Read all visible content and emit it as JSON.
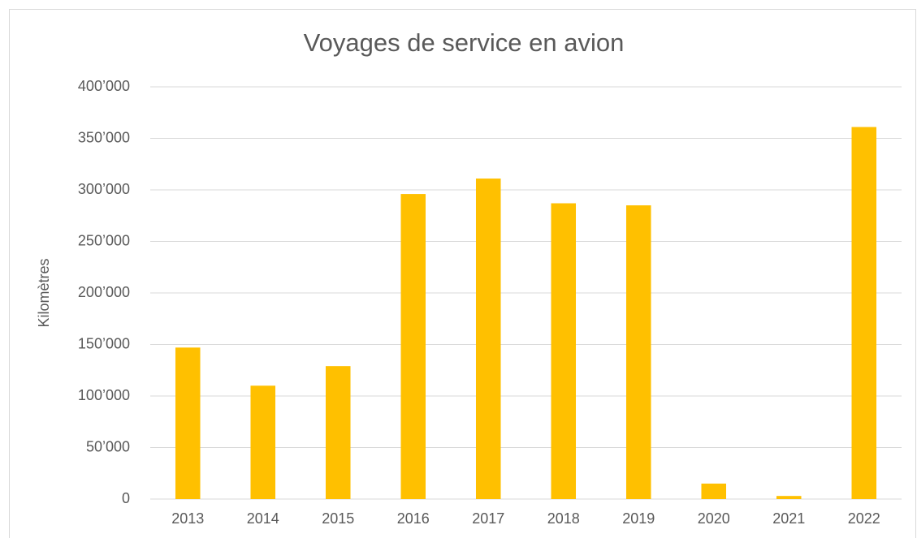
{
  "chart_data": {
    "type": "bar",
    "title": "Voyages de service en avion",
    "y_label": "Kilomètres",
    "categories": [
      "2013",
      "2014",
      "2015",
      "2016",
      "2017",
      "2018",
      "2019",
      "2020",
      "2021",
      "2022"
    ],
    "values": [
      147000,
      110000,
      129000,
      296000,
      311000,
      287000,
      285000,
      15000,
      3000,
      361000
    ],
    "color": "#ffc000",
    "ylim": [
      0,
      400000
    ],
    "yticks": [
      0,
      {
        "value": 50000,
        "label": "50’000"
      },
      {
        "value": 100000,
        "label": "100’000"
      },
      {
        "value": 150000,
        "label": "150’000"
      },
      {
        "value": 200000,
        "label": "200’000"
      },
      {
        "value": 250000,
        "label": "250’000"
      },
      {
        "value": 300000,
        "label": "300’000"
      },
      {
        "value": 350000,
        "label": "350’000"
      },
      {
        "value": 400000,
        "label": "400’000"
      }
    ],
    "grid": true
  }
}
